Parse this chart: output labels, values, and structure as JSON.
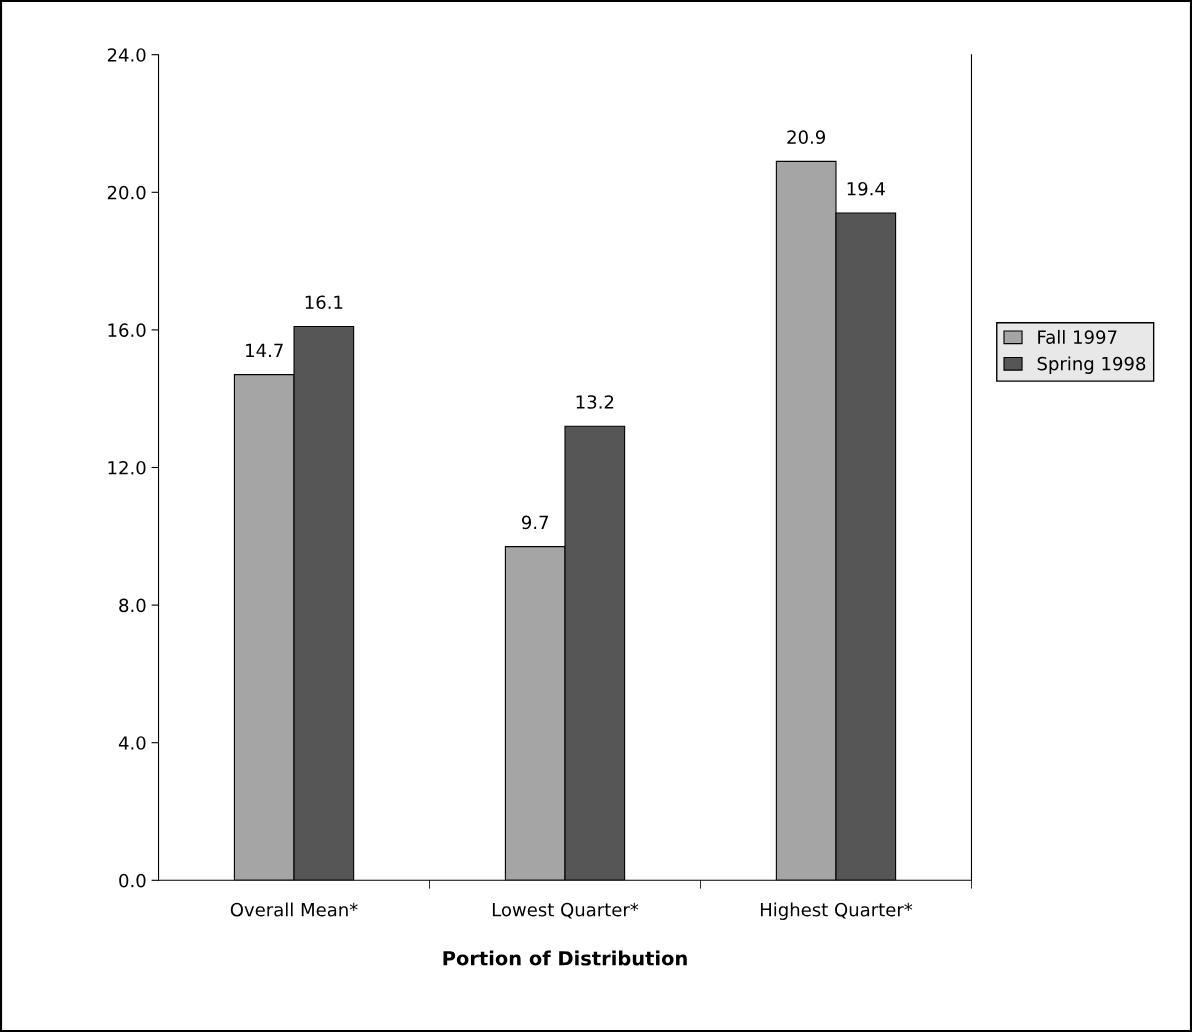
{
  "chart_data": {
    "type": "bar",
    "xlabel": "Portion of Distribution",
    "categories": [
      "Overall Mean*",
      "Lowest Quarter*",
      "Highest Quarter*"
    ],
    "series": [
      {
        "name": "Fall 1997",
        "color": "#a5a5a5",
        "values": [
          14.7,
          9.7,
          20.9
        ]
      },
      {
        "name": "Spring 1998",
        "color": "#565656",
        "values": [
          16.1,
          13.2,
          19.4
        ]
      }
    ],
    "ylim": [
      0,
      24
    ],
    "yticks": [
      {
        "value": 0,
        "label": "0.0"
      },
      {
        "value": 4,
        "label": "4.0"
      },
      {
        "value": 8,
        "label": "8.0"
      },
      {
        "value": 12,
        "label": "12.0"
      },
      {
        "value": 16,
        "label": "16.0"
      },
      {
        "value": 20,
        "label": "20.0"
      },
      {
        "value": 24,
        "label": "24.0"
      }
    ],
    "data_labels": true,
    "legend": "right",
    "grid": false
  }
}
